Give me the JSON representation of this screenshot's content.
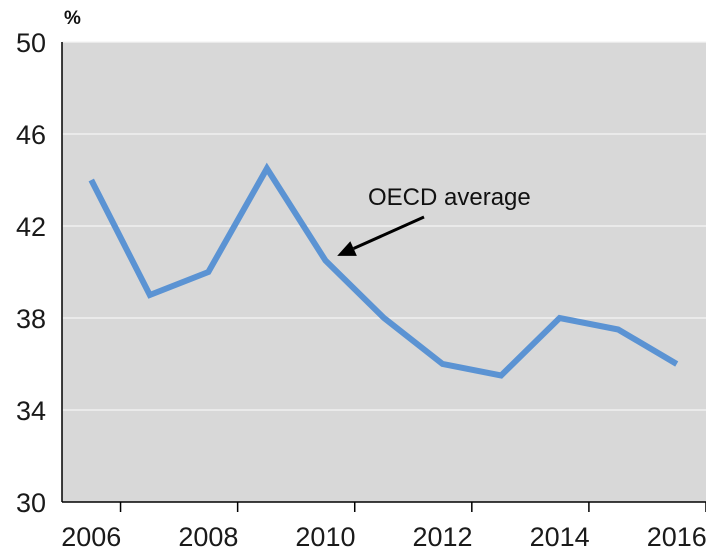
{
  "chart_data": {
    "type": "line",
    "unit_label": "%",
    "x": [
      2006,
      2007,
      2008,
      2009,
      2010,
      2011,
      2012,
      2013,
      2014,
      2015,
      2016
    ],
    "x_ticks": [
      "2006",
      "2008",
      "2010",
      "2012",
      "2014",
      "2016"
    ],
    "y_ticks": [
      "30",
      "34",
      "38",
      "42",
      "46",
      "50"
    ],
    "xlim": [
      2005.5,
      2016.5
    ],
    "ylim": [
      30,
      50
    ],
    "grid": true,
    "series": [
      {
        "values": [
          44,
          39,
          40,
          44.5,
          40.5,
          38,
          36,
          35.5,
          38,
          37.5,
          36
        ],
        "color": "#5b93d3"
      }
    ],
    "annotation": {
      "text": "OECD average",
      "x": 2010.2,
      "y": 40.7
    }
  }
}
